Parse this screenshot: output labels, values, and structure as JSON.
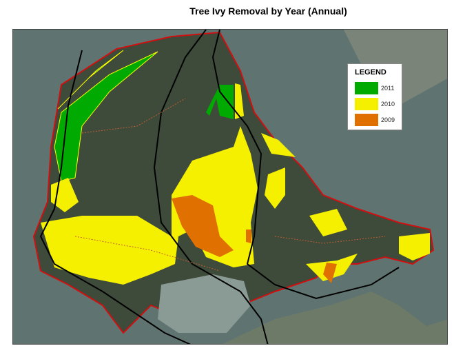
{
  "title": "Tree Ivy Removal by Year (Annual)",
  "legend": {
    "heading": "LEGEND",
    "items": [
      {
        "label": "2011",
        "color": "#00aa00"
      },
      {
        "label": "2010",
        "color": "#f5f000"
      },
      {
        "label": "2009",
        "color": "#e07000"
      }
    ]
  },
  "colors": {
    "water": "#5f7470",
    "land": "#3e4a3a",
    "shoreline": "#d01010"
  }
}
